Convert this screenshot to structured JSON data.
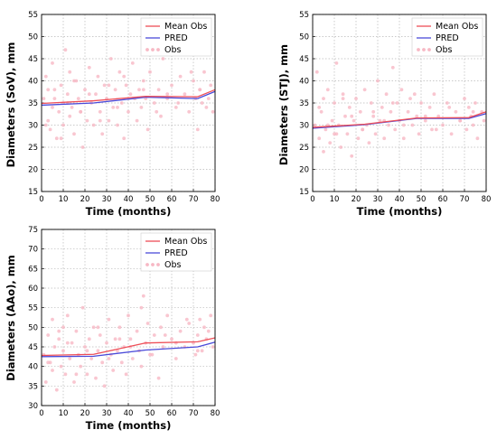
{
  "colors": {
    "mean_obs": "#ee4f58",
    "pred": "#4a4ad9",
    "obs": "#f7b8c4",
    "grid": "#b8b8b8"
  },
  "legend_labels": {
    "mean_obs": "Mean Obs",
    "pred": "PRED",
    "obs": "Obs"
  },
  "chart_data": [
    {
      "id": "sov",
      "type": "line",
      "xlabel": "Time (months)",
      "ylabel": "Diameters (SoV), mm",
      "xlim": [
        0,
        80
      ],
      "ylim": [
        15,
        55
      ],
      "xticks": [
        "0",
        "10",
        "20",
        "30",
        "40",
        "50",
        "60",
        "70",
        "80"
      ],
      "yticks": [
        "15",
        "20",
        "25",
        "30",
        "35",
        "40",
        "45",
        "50",
        "55"
      ],
      "grid": true,
      "legend_position": "top-right",
      "series": [
        {
          "name": "Mean Obs",
          "x": [
            0,
            24,
            48,
            72,
            80
          ],
          "y": [
            34.9,
            35.5,
            36.5,
            36.4,
            38.0
          ]
        },
        {
          "name": "PRED",
          "x": [
            0,
            24,
            48,
            72,
            80
          ],
          "y": [
            34.5,
            35.0,
            36.3,
            36.0,
            37.6
          ]
        },
        {
          "name": "Obs",
          "x": [
            1,
            2,
            3,
            3,
            4,
            5,
            5,
            6,
            7,
            8,
            9,
            10,
            10,
            11,
            12,
            13,
            13,
            14,
            15,
            16,
            17,
            18,
            19,
            20,
            21,
            22,
            23,
            24,
            25,
            26,
            27,
            28,
            29,
            30,
            31,
            32,
            33,
            34,
            35,
            36,
            37,
            38,
            39,
            40,
            41,
            42,
            44,
            45,
            46,
            47,
            48,
            49,
            50,
            52,
            54,
            55,
            56,
            58,
            60,
            62,
            64,
            66,
            68,
            70,
            71,
            72,
            73,
            74,
            75,
            76,
            78,
            79,
            2,
            6,
            9,
            12,
            15,
            18,
            22,
            27,
            31,
            35,
            38,
            43,
            47,
            53,
            58,
            63,
            69,
            73,
            77
          ],
          "y": [
            36,
            41,
            31,
            38,
            29,
            34,
            44,
            36,
            27,
            33,
            39,
            35,
            30,
            47,
            37,
            32,
            42,
            34,
            28,
            40,
            36,
            33,
            25,
            38,
            31,
            43,
            35,
            30,
            37,
            41,
            33,
            28,
            39,
            36,
            31,
            45,
            34,
            38,
            30,
            42,
            35,
            27,
            39,
            33,
            37,
            44,
            31,
            38,
            34,
            40,
            36,
            29,
            42,
            35,
            38,
            32,
            45,
            36,
            39,
            34,
            41,
            37,
            33,
            40,
            36,
            29,
            38,
            35,
            42,
            34,
            39,
            33,
            30,
            38,
            27,
            35,
            40,
            33,
            37,
            31,
            39,
            34,
            41,
            36,
            38,
            33,
            37,
            35,
            42,
            38,
            36
          ]
        }
      ]
    },
    {
      "id": "stj",
      "type": "line",
      "xlabel": "Time (months)",
      "ylabel": "Diameters (STJ), mm",
      "xlim": [
        0,
        80
      ],
      "ylim": [
        15,
        55
      ],
      "xticks": [
        "0",
        "10",
        "20",
        "30",
        "40",
        "50",
        "60",
        "70",
        "80"
      ],
      "yticks": [
        "15",
        "20",
        "25",
        "30",
        "35",
        "40",
        "45",
        "50",
        "55"
      ],
      "grid": true,
      "legend_position": "top-right",
      "series": [
        {
          "name": "Mean Obs",
          "x": [
            0,
            24,
            48,
            72,
            80
          ],
          "y": [
            29.5,
            30.2,
            31.6,
            31.7,
            33.0
          ]
        },
        {
          "name": "PRED",
          "x": [
            0,
            24,
            48,
            72,
            80
          ],
          "y": [
            29.3,
            30.1,
            31.5,
            31.5,
            32.6
          ]
        },
        {
          "name": "Obs",
          "x": [
            1,
            2,
            3,
            4,
            5,
            5,
            6,
            7,
            8,
            9,
            10,
            10,
            11,
            12,
            13,
            14,
            15,
            16,
            17,
            18,
            19,
            20,
            21,
            22,
            23,
            24,
            25,
            26,
            27,
            28,
            29,
            30,
            31,
            32,
            33,
            34,
            35,
            36,
            37,
            38,
            39,
            40,
            41,
            42,
            44,
            45,
            46,
            47,
            48,
            49,
            50,
            52,
            54,
            55,
            56,
            58,
            60,
            62,
            64,
            66,
            68,
            70,
            71,
            72,
            73,
            74,
            75,
            76,
            78,
            79,
            3,
            7,
            11,
            14,
            18,
            23,
            28,
            33,
            37,
            42,
            47,
            52,
            57,
            63,
            68,
            74
          ],
          "y": [
            30,
            42,
            27,
            33,
            24,
            36,
            29,
            38,
            26,
            31,
            35,
            28,
            44,
            30,
            25,
            37,
            32,
            28,
            34,
            23,
            31,
            36,
            27,
            33,
            29,
            38,
            30,
            26,
            35,
            32,
            28,
            40,
            31,
            34,
            27,
            37,
            30,
            33,
            43,
            29,
            35,
            31,
            38,
            27,
            33,
            36,
            30,
            47,
            32,
            28,
            35,
            31,
            34,
            29,
            37,
            32,
            30,
            35,
            28,
            33,
            31,
            36,
            29,
            34,
            32,
            30,
            35,
            27,
            33,
            31,
            34,
            30,
            28,
            36,
            32,
            29,
            33,
            31,
            35,
            30,
            37,
            32,
            29,
            34,
            31,
            33
          ]
        }
      ]
    },
    {
      "id": "aao",
      "type": "line",
      "xlabel": "Time (months)",
      "ylabel": "Diameters (AAo), mm",
      "xlim": [
        0,
        80
      ],
      "ylim": [
        30,
        75
      ],
      "xticks": [
        "0",
        "10",
        "20",
        "30",
        "40",
        "50",
        "60",
        "70",
        "80"
      ],
      "yticks": [
        "30",
        "35",
        "40",
        "45",
        "50",
        "55",
        "60",
        "65",
        "70",
        "75"
      ],
      "grid": true,
      "legend_position": "top-right",
      "series": [
        {
          "name": "Mean Obs",
          "x": [
            0,
            24,
            48,
            72,
            80
          ],
          "y": [
            42.8,
            43.1,
            46.0,
            46.3,
            47.3
          ]
        },
        {
          "name": "PRED",
          "x": [
            0,
            24,
            48,
            72,
            80
          ],
          "y": [
            42.5,
            42.6,
            44.2,
            45.0,
            46.2
          ]
        },
        {
          "name": "Obs",
          "x": [
            1,
            2,
            3,
            4,
            5,
            5,
            6,
            7,
            8,
            9,
            10,
            10,
            11,
            12,
            13,
            14,
            15,
            16,
            17,
            18,
            19,
            20,
            21,
            22,
            23,
            24,
            25,
            26,
            27,
            28,
            29,
            30,
            31,
            32,
            33,
            34,
            35,
            36,
            37,
            38,
            39,
            40,
            41,
            42,
            44,
            45,
            46,
            47,
            48,
            49,
            50,
            52,
            54,
            55,
            56,
            58,
            60,
            62,
            64,
            66,
            68,
            70,
            71,
            72,
            73,
            74,
            75,
            76,
            78,
            79,
            3,
            8,
            12,
            16,
            21,
            26,
            31,
            36,
            41,
            46,
            51,
            57,
            62,
            67,
            72,
            77
          ],
          "y": [
            43,
            36,
            48,
            41,
            52,
            39,
            45,
            34,
            47,
            40,
            50,
            44,
            38,
            53,
            42,
            46,
            36,
            49,
            43,
            40,
            55,
            45,
            38,
            47,
            42,
            50,
            37,
            44,
            48,
            41,
            35,
            46,
            52,
            43,
            39,
            47,
            44,
            50,
            41,
            45,
            38,
            53,
            47,
            42,
            49,
            44,
            40,
            58,
            46,
            51,
            43,
            48,
            37,
            50,
            45,
            53,
            47,
            42,
            49,
            45,
            51,
            46,
            43,
            48,
            52,
            44,
            50,
            47,
            53,
            45,
            41,
            49,
            46,
            38,
            44,
            50,
            42,
            47,
            45,
            55,
            43,
            48,
            46,
            52,
            44,
            49
          ]
        }
      ]
    }
  ]
}
